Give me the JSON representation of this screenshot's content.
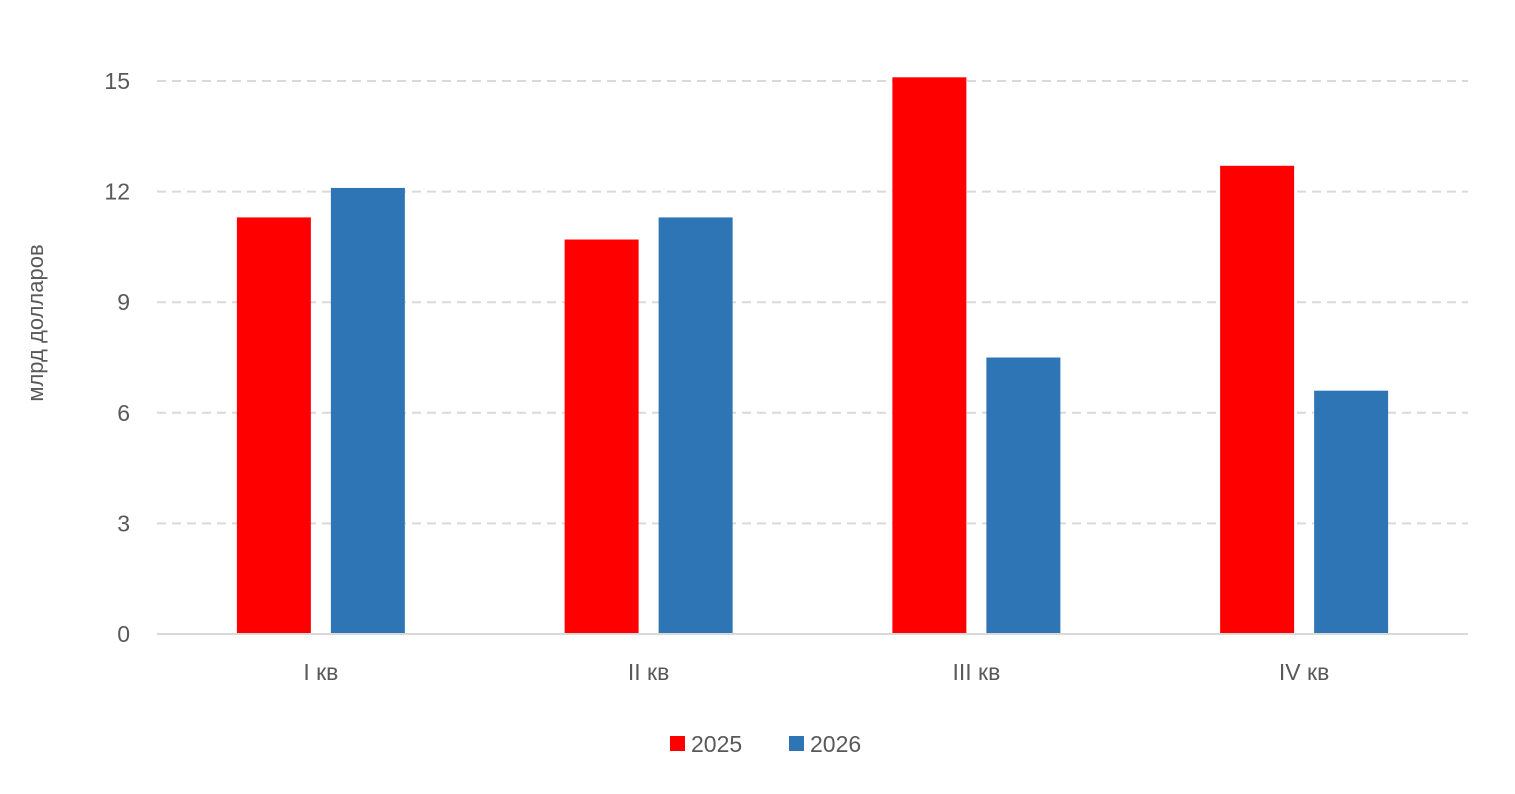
{
  "chart_data": {
    "type": "bar",
    "title": "",
    "xlabel": "",
    "ylabel": "млрд долларов",
    "categories": [
      "I кв",
      "II кв",
      "III кв",
      "IV кв"
    ],
    "series": [
      {
        "name": "2025",
        "color": "#ff0000",
        "values": [
          11.3,
          10.7,
          15.1,
          12.7
        ]
      },
      {
        "name": "2026",
        "color": "#2e75b6",
        "values": [
          12.1,
          11.3,
          7.5,
          6.6
        ]
      }
    ],
    "ylim": [
      0,
      15
    ],
    "yticks": [
      0,
      3,
      6,
      9,
      12,
      15
    ],
    "grid": true,
    "legend_position": "bottom"
  }
}
